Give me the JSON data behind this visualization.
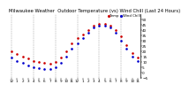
{
  "title": "Milwaukee Weather  Outdoor Temperature (vs) Wind Chill (Last 24 Hours)",
  "temp": [
    20,
    17,
    15,
    13,
    11,
    10,
    9,
    8,
    10,
    14,
    20,
    27,
    32,
    36,
    40,
    44,
    46,
    46,
    44,
    40,
    34,
    26,
    18,
    14
  ],
  "windchill": [
    14,
    11,
    9,
    7,
    5,
    4,
    3,
    3,
    5,
    9,
    15,
    22,
    27,
    32,
    37,
    42,
    44,
    44,
    42,
    37,
    30,
    22,
    15,
    11
  ],
  "hours": [
    "12",
    "1",
    "2",
    "3",
    "4",
    "5",
    "6",
    "7",
    "8",
    "9",
    "10",
    "11",
    "12",
    "1",
    "2",
    "3",
    "4",
    "5",
    "6",
    "7",
    "8",
    "9",
    "10",
    "11"
  ],
  "ylim": [
    -5,
    55
  ],
  "yticks": [
    -5,
    0,
    5,
    10,
    15,
    20,
    25,
    30,
    35,
    40,
    45,
    50
  ],
  "temp_color": "#cc0000",
  "windchill_color": "#0000cc",
  "grid_color": "#888888",
  "bg_color": "#ffffff",
  "title_fontsize": 3.8,
  "tick_fontsize": 3.0,
  "legend_fontsize": 2.8
}
